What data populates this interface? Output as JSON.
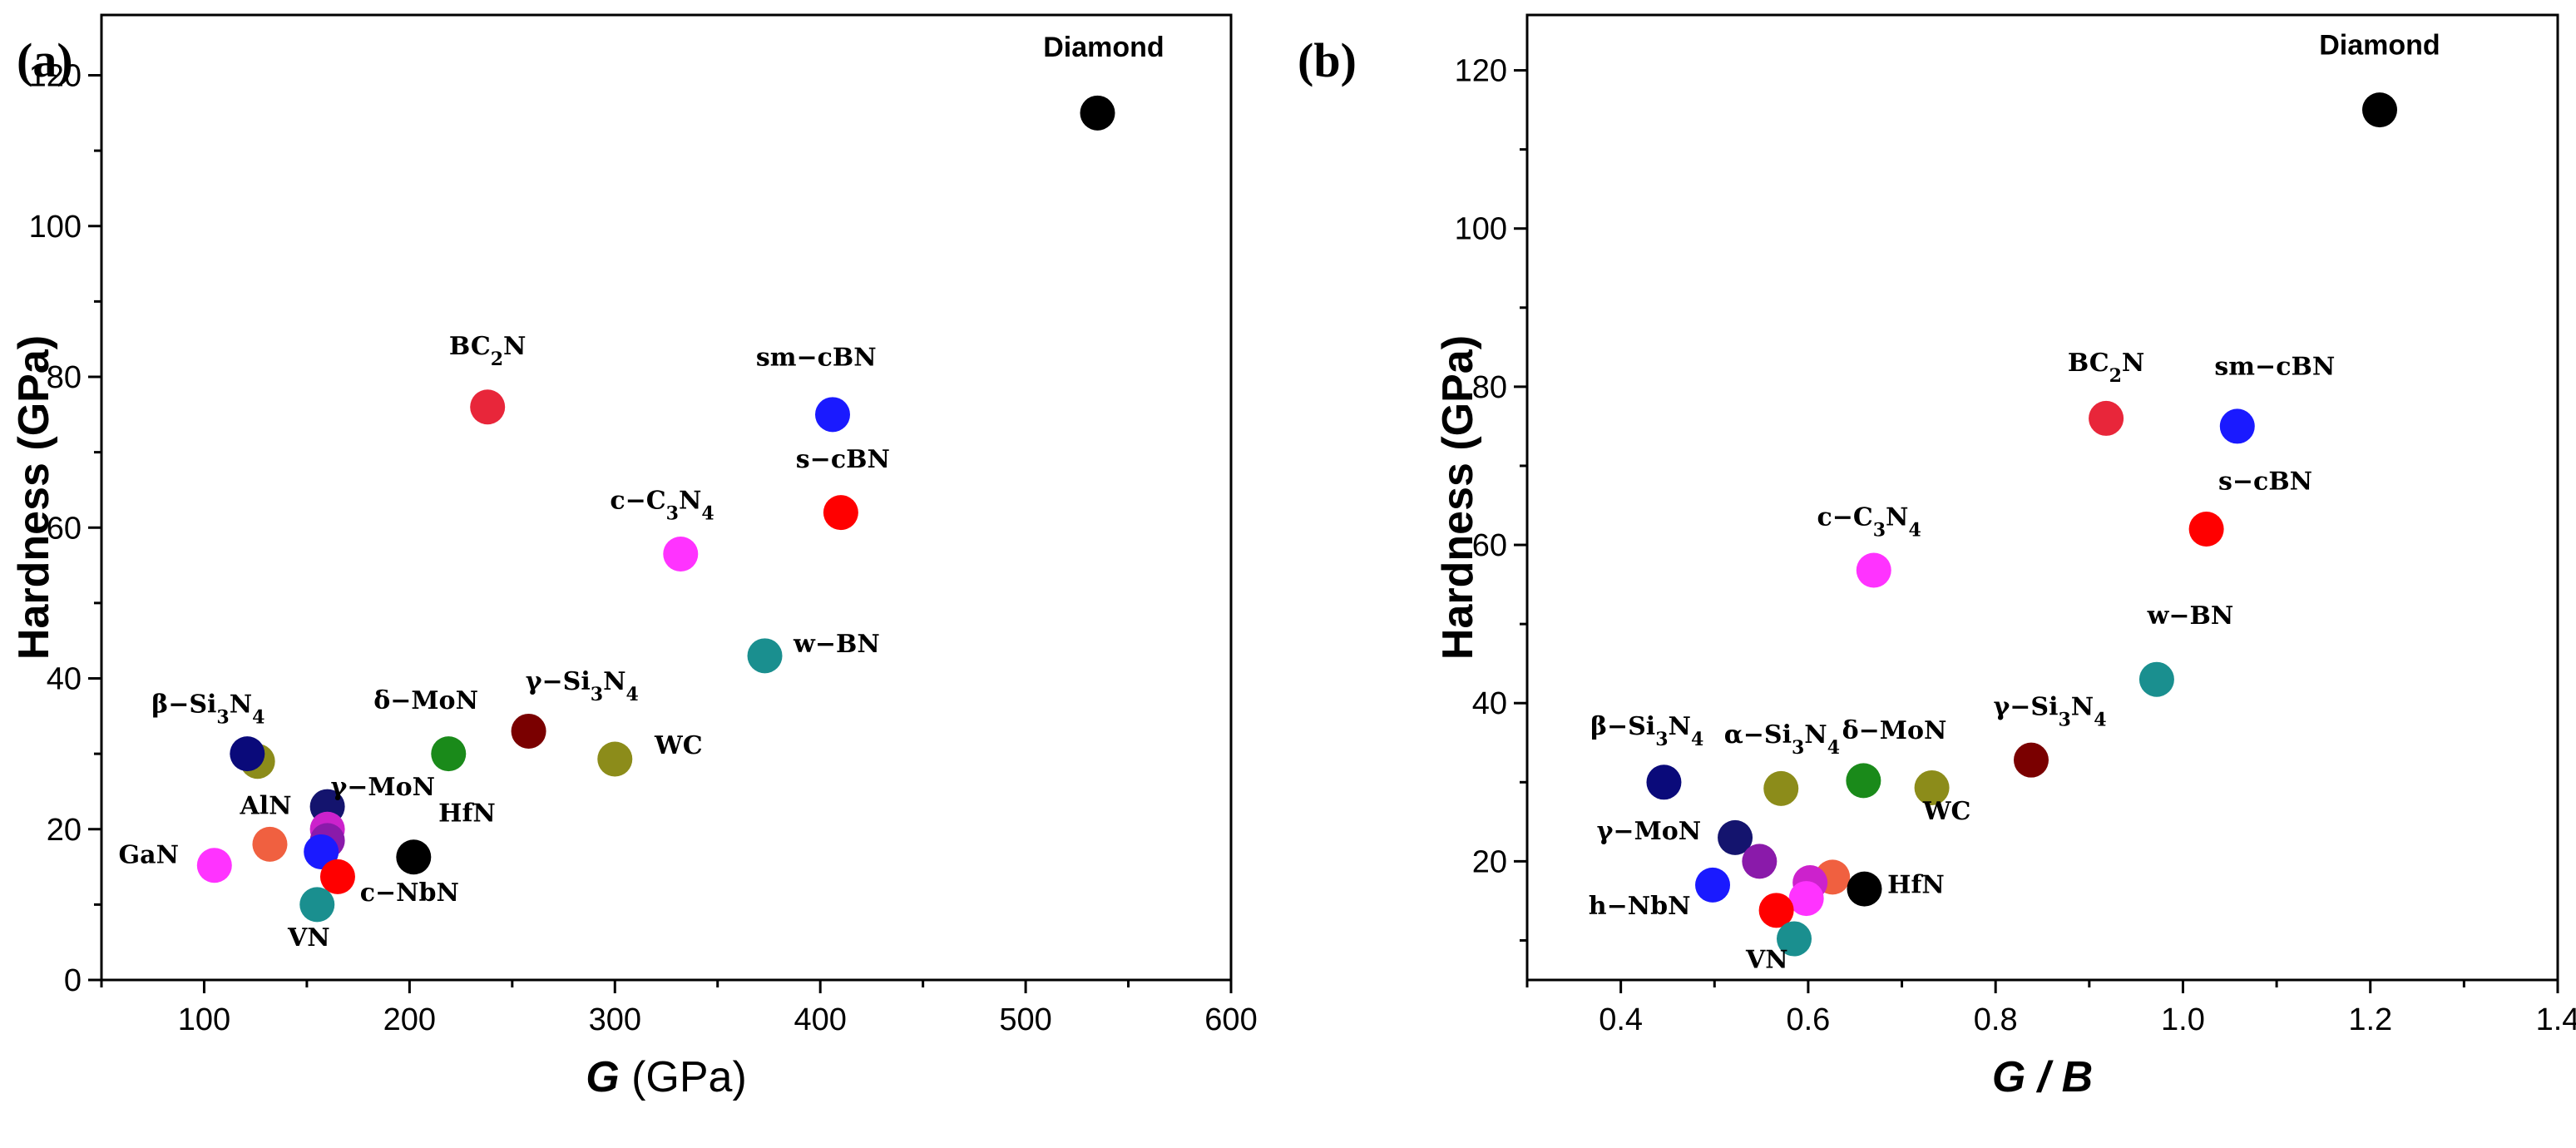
{
  "colors": {
    "Diamond": "#000000",
    "BC2N": "#e8263a",
    "sm-cBN": "#1a1aff",
    "s-cBN": "#ff0000",
    "c-C3N4": "#ff33ff",
    "w-BN": "#1a8f8f",
    "gamma-Si3N4": "#7a0000",
    "delta-MoN": "#1a8a1a",
    "WC": "#8c8c1a",
    "beta-Si3N4": "#0a0a7a",
    "alpha-Si3N4": "#8c8c1a",
    "gamma-MoN": "#14146e",
    "AlN": "#f06040",
    "HfN": "#000000",
    "GaN": "#ff33ff",
    "VN": "#1a8f8f",
    "c-NbN": "#ff0000",
    "h-NbN": "#1a1aff",
    "purple": "#8a1aaa",
    "magenta": "#cc22cc"
  },
  "chart_data": [
    {
      "panel": "(a)",
      "type": "scatter",
      "xlabel_italic": "G",
      "xlabel_unit": " (GPa)",
      "ylabel": "Hardness (GPa)",
      "xlim": [
        50,
        600
      ],
      "ylim": [
        0,
        128
      ],
      "xticks": [
        100,
        200,
        300,
        400,
        500,
        600
      ],
      "yticks": [
        0,
        20,
        40,
        60,
        80,
        100,
        120
      ],
      "points": [
        {
          "name": "Diamond",
          "x": 535,
          "y": 115,
          "color": "Diamond"
        },
        {
          "name": "BC2N",
          "x": 238,
          "y": 76,
          "color": "BC2N"
        },
        {
          "name": "sm-cBN",
          "x": 406,
          "y": 75,
          "color": "sm-cBN"
        },
        {
          "name": "s-cBN",
          "x": 410,
          "y": 62,
          "color": "s-cBN"
        },
        {
          "name": "c-C3N4",
          "x": 332,
          "y": 56.5,
          "color": "c-C3N4"
        },
        {
          "name": "w-BN",
          "x": 373,
          "y": 43,
          "color": "w-BN"
        },
        {
          "name": "γ-Si3N4",
          "x": 258,
          "y": 33,
          "color": "gamma-Si3N4"
        },
        {
          "name": "δ-MoN",
          "x": 219,
          "y": 30,
          "color": "delta-MoN"
        },
        {
          "name": "WC",
          "x": 300,
          "y": 29.3,
          "color": "WC"
        },
        {
          "name": "α-Si3N4",
          "x": 126,
          "y": 29,
          "color": "alpha-Si3N4"
        },
        {
          "name": "β-Si3N4",
          "x": 121,
          "y": 30,
          "color": "beta-Si3N4"
        },
        {
          "name": "γ-MoN",
          "x": 160,
          "y": 23,
          "color": "gamma-MoN"
        },
        {
          "name": "magenta",
          "x": 160,
          "y": 20,
          "color": "magenta"
        },
        {
          "name": "purple",
          "x": 160,
          "y": 18.5,
          "color": "purple"
        },
        {
          "name": "AlN",
          "x": 132,
          "y": 18,
          "color": "AlN"
        },
        {
          "name": "h-NbN",
          "x": 157,
          "y": 17,
          "color": "h-NbN"
        },
        {
          "name": "HfN",
          "x": 202,
          "y": 16.3,
          "color": "HfN"
        },
        {
          "name": "GaN",
          "x": 105,
          "y": 15.2,
          "color": "GaN"
        },
        {
          "name": "c-NbN",
          "x": 165,
          "y": 13.7,
          "color": "c-NbN"
        },
        {
          "name": "VN",
          "x": 155,
          "y": 10,
          "color": "VN"
        }
      ],
      "labels": [
        {
          "name": "Diamond",
          "x": 538,
          "y": 122.5
        },
        {
          "name": "BC2N",
          "x": 238,
          "y": 83
        },
        {
          "name": "sm-cBN",
          "x": 398,
          "y": 81.5
        },
        {
          "name": "s-cBN",
          "x": 411,
          "y": 68
        },
        {
          "name": "c-C3N4",
          "x": 323,
          "y": 62.5
        },
        {
          "name": "w-BN",
          "x": 408,
          "y": 43.5
        },
        {
          "name": "γ-Si3N4",
          "x": 284,
          "y": 38.5
        },
        {
          "name": "δ-MoN",
          "x": 208,
          "y": 36
        },
        {
          "name": "WC",
          "x": 331,
          "y": 30
        },
        {
          "name": "β-Si3N4",
          "x": 102,
          "y": 35.5
        },
        {
          "name": "γ-MoN",
          "x": 187,
          "y": 24.5
        },
        {
          "name": "AlN",
          "x": 130,
          "y": 22
        },
        {
          "name": "HfN",
          "x": 228,
          "y": 21
        },
        {
          "name": "GaN",
          "x": 73,
          "y": 15.5
        },
        {
          "name": "c-NbN",
          "x": 200,
          "y": 10.5
        },
        {
          "name": "VN",
          "x": 151,
          "y": 4.5
        }
      ]
    },
    {
      "panel": "(b)",
      "type": "scatter",
      "xlabel_italic": "G / B",
      "xlabel_unit": "",
      "ylabel": "Hardness (GPa)",
      "xlim": [
        0.3,
        1.4
      ],
      "ylim": [
        5,
        127
      ],
      "xticks": [
        0.4,
        0.6,
        0.8,
        1.0,
        1.2,
        1.4
      ],
      "yticks": [
        20,
        40,
        60,
        80,
        100,
        120
      ],
      "points": [
        {
          "name": "Diamond",
          "x": 1.21,
          "y": 115,
          "color": "Diamond"
        },
        {
          "name": "BC2N",
          "x": 0.918,
          "y": 76,
          "color": "BC2N"
        },
        {
          "name": "sm-cBN",
          "x": 1.058,
          "y": 75,
          "color": "sm-cBN"
        },
        {
          "name": "s-cBN",
          "x": 1.025,
          "y": 62,
          "color": "s-cBN"
        },
        {
          "name": "c-C3N4",
          "x": 0.67,
          "y": 56.8,
          "color": "c-C3N4"
        },
        {
          "name": "w-BN",
          "x": 0.972,
          "y": 43,
          "color": "w-BN"
        },
        {
          "name": "γ-Si3N4",
          "x": 0.838,
          "y": 32.8,
          "color": "gamma-Si3N4"
        },
        {
          "name": "δ-MoN",
          "x": 0.659,
          "y": 30.2,
          "color": "delta-MoN"
        },
        {
          "name": "WC",
          "x": 0.732,
          "y": 29.3,
          "color": "WC"
        },
        {
          "name": "α-Si3N4",
          "x": 0.571,
          "y": 29.2,
          "color": "alpha-Si3N4"
        },
        {
          "name": "β-Si3N4",
          "x": 0.446,
          "y": 30,
          "color": "beta-Si3N4"
        },
        {
          "name": "γ-MoN",
          "x": 0.522,
          "y": 23,
          "color": "gamma-MoN"
        },
        {
          "name": "purple",
          "x": 0.548,
          "y": 20,
          "color": "purple"
        },
        {
          "name": "AlN",
          "x": 0.626,
          "y": 18,
          "color": "AlN"
        },
        {
          "name": "magenta",
          "x": 0.602,
          "y": 17.3,
          "color": "magenta"
        },
        {
          "name": "h-NbN",
          "x": 0.498,
          "y": 17,
          "color": "h-NbN"
        },
        {
          "name": "HfN",
          "x": 0.66,
          "y": 16.5,
          "color": "HfN"
        },
        {
          "name": "GaN",
          "x": 0.598,
          "y": 15.3,
          "color": "GaN"
        },
        {
          "name": "c-NbN",
          "x": 0.566,
          "y": 13.8,
          "color": "c-NbN"
        },
        {
          "name": "VN",
          "x": 0.585,
          "y": 10.2,
          "color": "VN"
        }
      ],
      "labels": [
        {
          "name": "Diamond",
          "x": 1.21,
          "y": 122
        },
        {
          "name": "BC2N",
          "x": 0.918,
          "y": 82
        },
        {
          "name": "sm-cBN",
          "x": 1.098,
          "y": 81.5
        },
        {
          "name": "s-cBN",
          "x": 1.088,
          "y": 67
        },
        {
          "name": "c-C3N4",
          "x": 0.665,
          "y": 62.5
        },
        {
          "name": "w-BN",
          "x": 1.008,
          "y": 50
        },
        {
          "name": "γ-Si3N4",
          "x": 0.858,
          "y": 38.5
        },
        {
          "name": "δ-MoN",
          "x": 0.692,
          "y": 35.5
        },
        {
          "name": "α-Si3N4",
          "x": 0.572,
          "y": 35
        },
        {
          "name": "WC",
          "x": 0.748,
          "y": 25.3
        },
        {
          "name": "β-Si3N4",
          "x": 0.428,
          "y": 36
        },
        {
          "name": "γ-MoN",
          "x": 0.43,
          "y": 22.8
        },
        {
          "name": "h-NbN",
          "x": 0.42,
          "y": 13.3
        },
        {
          "name": "HfN",
          "x": 0.715,
          "y": 16
        },
        {
          "name": "VN",
          "x": 0.556,
          "y": 6.5
        }
      ]
    }
  ]
}
